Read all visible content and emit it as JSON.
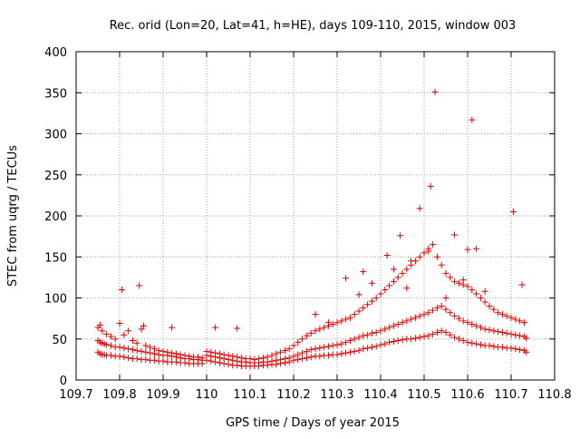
{
  "chart_data": {
    "type": "scatter",
    "title": "Rec. orid (Lon=20, Lat=41, h=HE), days 109-110, 2015, window 003",
    "xlabel": "GPS time / Days of year 2015",
    "ylabel": "STEC from uqrg / TECUs",
    "xlim": [
      109.7,
      110.8
    ],
    "ylim": [
      0,
      400
    ],
    "xticks": [
      "109.7",
      "109.8",
      "109.9",
      "110",
      "110.1",
      "110.2",
      "110.3",
      "110.4",
      "110.5",
      "110.6",
      "110.7",
      "110.8"
    ],
    "yticks": [
      "0",
      "50",
      "100",
      "150",
      "200",
      "250",
      "300",
      "350",
      "400"
    ],
    "grid": true,
    "legend": "none",
    "marker": "+",
    "color": "#e00000",
    "series": [
      {
        "x": [
          109.75,
          109.755,
          109.76,
          109.765,
          109.77,
          109.78,
          109.79,
          109.8,
          109.81,
          109.82,
          109.83,
          109.84,
          109.85,
          109.86,
          109.87,
          109.88,
          109.89,
          109.9,
          109.91,
          109.92,
          109.93,
          109.94,
          109.95,
          109.96,
          109.97,
          109.98,
          109.99,
          110.0,
          110.01,
          110.02,
          110.03,
          110.04,
          110.05,
          110.06,
          110.07,
          110.08,
          110.09,
          110.1,
          110.11,
          110.12,
          110.13,
          110.14,
          110.15,
          110.16,
          110.17,
          110.18,
          110.19,
          110.2,
          110.21,
          110.22,
          110.23,
          110.24,
          110.25,
          110.26,
          110.27,
          110.28,
          110.29,
          110.3,
          110.31,
          110.32,
          110.33,
          110.34,
          110.35,
          110.36,
          110.37,
          110.38,
          110.39,
          110.4,
          110.41,
          110.42,
          110.43,
          110.44,
          110.45,
          110.46,
          110.47,
          110.48,
          110.49,
          110.5,
          110.51,
          110.52,
          110.53,
          110.54,
          110.55,
          110.56,
          110.57,
          110.58,
          110.59,
          110.6,
          110.61,
          110.62,
          110.63,
          110.64,
          110.65,
          110.66,
          110.67,
          110.68,
          110.69,
          110.7,
          110.71,
          110.72,
          110.73,
          110.735
        ],
        "y": [
          34,
          32,
          31,
          31,
          30,
          30,
          29,
          29,
          28,
          27,
          26,
          26,
          25,
          25,
          24,
          24,
          23,
          23,
          22,
          22,
          22,
          21,
          21,
          20,
          20,
          20,
          20,
          24,
          23,
          22,
          21,
          20,
          19,
          18,
          18,
          17,
          17,
          17,
          17,
          17,
          18,
          18,
          19,
          19,
          20,
          21,
          22,
          24,
          25,
          26,
          27,
          28,
          29,
          29,
          30,
          30,
          31,
          31,
          32,
          33,
          34,
          35,
          36,
          38,
          39,
          40,
          41,
          43,
          44,
          46,
          47,
          48,
          49,
          50,
          50,
          51,
          52,
          53,
          54,
          56,
          58,
          60,
          58,
          55,
          52,
          50,
          48,
          46,
          45,
          44,
          43,
          42,
          42,
          41,
          40,
          40,
          39,
          39,
          38,
          37,
          36,
          34
        ]
      },
      {
        "x": [
          109.75,
          109.755,
          109.76,
          109.765,
          109.77,
          109.78,
          109.79,
          109.8,
          109.81,
          109.82,
          109.83,
          109.84,
          109.85,
          109.86,
          109.87,
          109.88,
          109.89,
          109.9,
          109.91,
          109.92,
          109.93,
          109.94,
          109.95,
          109.96,
          109.97,
          109.98,
          109.99,
          110.0,
          110.01,
          110.02,
          110.03,
          110.04,
          110.05,
          110.06,
          110.07,
          110.08,
          110.09,
          110.1,
          110.11,
          110.12,
          110.13,
          110.14,
          110.15,
          110.16,
          110.17,
          110.18,
          110.19,
          110.2,
          110.21,
          110.22,
          110.23,
          110.24,
          110.25,
          110.26,
          110.27,
          110.28,
          110.29,
          110.3,
          110.31,
          110.32,
          110.33,
          110.34,
          110.35,
          110.36,
          110.37,
          110.38,
          110.39,
          110.4,
          110.41,
          110.42,
          110.43,
          110.44,
          110.45,
          110.46,
          110.47,
          110.48,
          110.49,
          110.5,
          110.51,
          110.52,
          110.53,
          110.54,
          110.55,
          110.56,
          110.57,
          110.58,
          110.59,
          110.6,
          110.61,
          110.62,
          110.63,
          110.64,
          110.65,
          110.66,
          110.67,
          110.68,
          110.69,
          110.7,
          110.71,
          110.72,
          110.73,
          110.735
        ],
        "y": [
          48,
          46,
          45,
          44,
          43,
          42,
          40,
          40,
          39,
          38,
          37,
          36,
          35,
          34,
          33,
          32,
          31,
          30,
          30,
          29,
          28,
          27,
          26,
          26,
          25,
          25,
          24,
          30,
          29,
          28,
          27,
          26,
          25,
          24,
          23,
          22,
          22,
          21,
          21,
          21,
          22,
          22,
          23,
          24,
          25,
          26,
          27,
          29,
          31,
          33,
          35,
          37,
          38,
          39,
          40,
          41,
          42,
          43,
          44,
          46,
          48,
          50,
          52,
          54,
          55,
          57,
          58,
          60,
          62,
          64,
          66,
          68,
          70,
          72,
          74,
          76,
          78,
          80,
          82,
          85,
          88,
          90,
          86,
          82,
          78,
          75,
          72,
          70,
          68,
          66,
          64,
          62,
          61,
          60,
          59,
          58,
          57,
          56,
          55,
          54,
          53,
          51
        ]
      },
      {
        "x": [
          109.75,
          109.76,
          109.77,
          109.78,
          109.79,
          109.8,
          109.81,
          109.82,
          109.83,
          109.84,
          109.85,
          109.86,
          109.87,
          109.88,
          109.89,
          109.9,
          109.91,
          109.92,
          109.93,
          109.94,
          109.95,
          109.96,
          109.97,
          109.98,
          109.99,
          110.0,
          110.01,
          110.02,
          110.03,
          110.04,
          110.05,
          110.06,
          110.07,
          110.08,
          110.09,
          110.1,
          110.11,
          110.12,
          110.13,
          110.14,
          110.15,
          110.16,
          110.17,
          110.18,
          110.19,
          110.2,
          110.21,
          110.22,
          110.23,
          110.24,
          110.25,
          110.26,
          110.27,
          110.28,
          110.29,
          110.3,
          110.31,
          110.32,
          110.33,
          110.34,
          110.35,
          110.36,
          110.37,
          110.38,
          110.39,
          110.4,
          110.41,
          110.42,
          110.43,
          110.44,
          110.45,
          110.46,
          110.47,
          110.48,
          110.49,
          110.5,
          110.51,
          110.52,
          110.53,
          110.54,
          110.55,
          110.56,
          110.57,
          110.58,
          110.59,
          110.6,
          110.61,
          110.62,
          110.63,
          110.64,
          110.65,
          110.66,
          110.67,
          110.68,
          110.69,
          110.7,
          110.71,
          110.72,
          110.73
        ],
        "y": [
          64,
          60,
          56,
          53,
          50,
          69,
          55,
          60,
          48,
          45,
          62,
          42,
          40,
          38,
          36,
          35,
          34,
          33,
          32,
          31,
          30,
          29,
          28,
          28,
          27,
          35,
          34,
          33,
          32,
          31,
          30,
          29,
          28,
          27,
          26,
          26,
          25,
          26,
          27,
          28,
          30,
          32,
          34,
          36,
          38,
          42,
          46,
          50,
          54,
          57,
          60,
          62,
          64,
          66,
          68,
          70,
          72,
          74,
          76,
          80,
          84,
          88,
          92,
          96,
          100,
          105,
          110,
          115,
          120,
          125,
          130,
          135,
          140,
          145,
          150,
          155,
          160,
          165,
          150,
          140,
          130,
          125,
          120,
          118,
          116,
          114,
          110,
          105,
          100,
          95,
          90,
          86,
          82,
          80,
          78,
          76,
          74,
          72,
          70
        ]
      },
      {
        "x": [
          109.755,
          109.805,
          109.845,
          109.855,
          109.92,
          110.02,
          110.07,
          110.25,
          110.28,
          110.32,
          110.35,
          110.36,
          110.38,
          110.415,
          110.43,
          110.445,
          110.46,
          110.47,
          110.49,
          110.51,
          110.515,
          110.525,
          110.55,
          110.57,
          110.59,
          110.6,
          110.61,
          110.62,
          110.64,
          110.705,
          110.725
        ],
        "y": [
          67,
          110,
          115,
          66,
          64,
          64,
          63,
          80,
          70,
          124,
          104,
          132,
          118,
          152,
          135,
          176,
          112,
          145,
          209,
          157,
          236,
          351,
          100,
          177,
          122,
          159,
          317,
          160,
          108,
          205,
          116
        ]
      }
    ]
  }
}
